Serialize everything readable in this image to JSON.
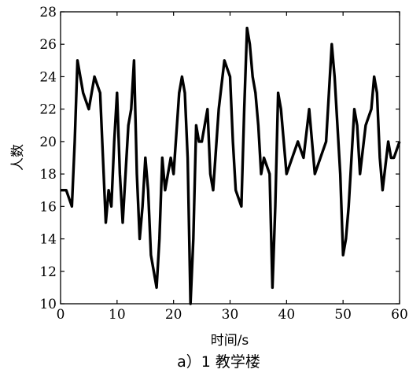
{
  "chart_data": {
    "type": "line",
    "title": "",
    "xlabel": "时间/s",
    "ylabel": "人数",
    "caption": "a）1 教学楼",
    "xlim": [
      0,
      60
    ],
    "ylim": [
      10,
      28
    ],
    "xticks": [
      0,
      10,
      20,
      30,
      40,
      50,
      60
    ],
    "yticks": [
      10,
      12,
      14,
      16,
      18,
      20,
      22,
      24,
      26,
      28
    ],
    "grid": false,
    "legend": "none",
    "line_color": "#000000",
    "series": [
      {
        "x": [
          0,
          1,
          1.5,
          2,
          2.5,
          3,
          4,
          5,
          6,
          7,
          7.5,
          8,
          8.5,
          9,
          9.5,
          10,
          10.5,
          11,
          11.5,
          12,
          12.5,
          13,
          13.5,
          14,
          14.5,
          15,
          15.5,
          16,
          16.5,
          17,
          17.5,
          18,
          18.5,
          19,
          19.5,
          20,
          21,
          21.5,
          22,
          22.5,
          23,
          23.5,
          24,
          24.5,
          25,
          26,
          26.5,
          27,
          28,
          29,
          30,
          30.5,
          31,
          32,
          32.5,
          33,
          33.5,
          34,
          34.5,
          35,
          35.5,
          36,
          37,
          37.5,
          38,
          38.5,
          39,
          40,
          41,
          42,
          43,
          44,
          45,
          46,
          47,
          48,
          48.5,
          49,
          49.5,
          50,
          50.5,
          51,
          51.5,
          52,
          52.5,
          53,
          54,
          55,
          55.5,
          56,
          56.5,
          57,
          58,
          58.5,
          59,
          60
        ],
        "values": [
          17,
          17,
          16.5,
          16,
          20,
          25,
          23,
          22,
          24,
          23,
          19,
          15,
          17,
          16,
          20,
          23,
          18,
          15,
          18,
          21,
          22,
          25,
          18,
          14,
          16,
          19,
          17,
          13,
          12,
          11,
          14,
          19,
          17,
          18,
          19,
          18,
          23,
          24,
          23,
          19,
          10,
          14,
          21,
          20,
          20,
          22,
          18,
          17,
          22,
          25,
          24,
          20,
          17,
          16,
          22,
          27,
          26,
          24,
          23,
          21,
          18,
          19,
          18,
          11,
          16,
          23,
          22,
          18,
          19,
          20,
          19,
          22,
          18,
          19,
          20,
          26,
          24,
          21,
          18,
          13,
          14,
          16,
          19,
          22,
          21,
          18,
          21,
          22,
          24,
          23,
          19,
          17,
          20,
          19,
          19,
          20
        ]
      }
    ]
  }
}
